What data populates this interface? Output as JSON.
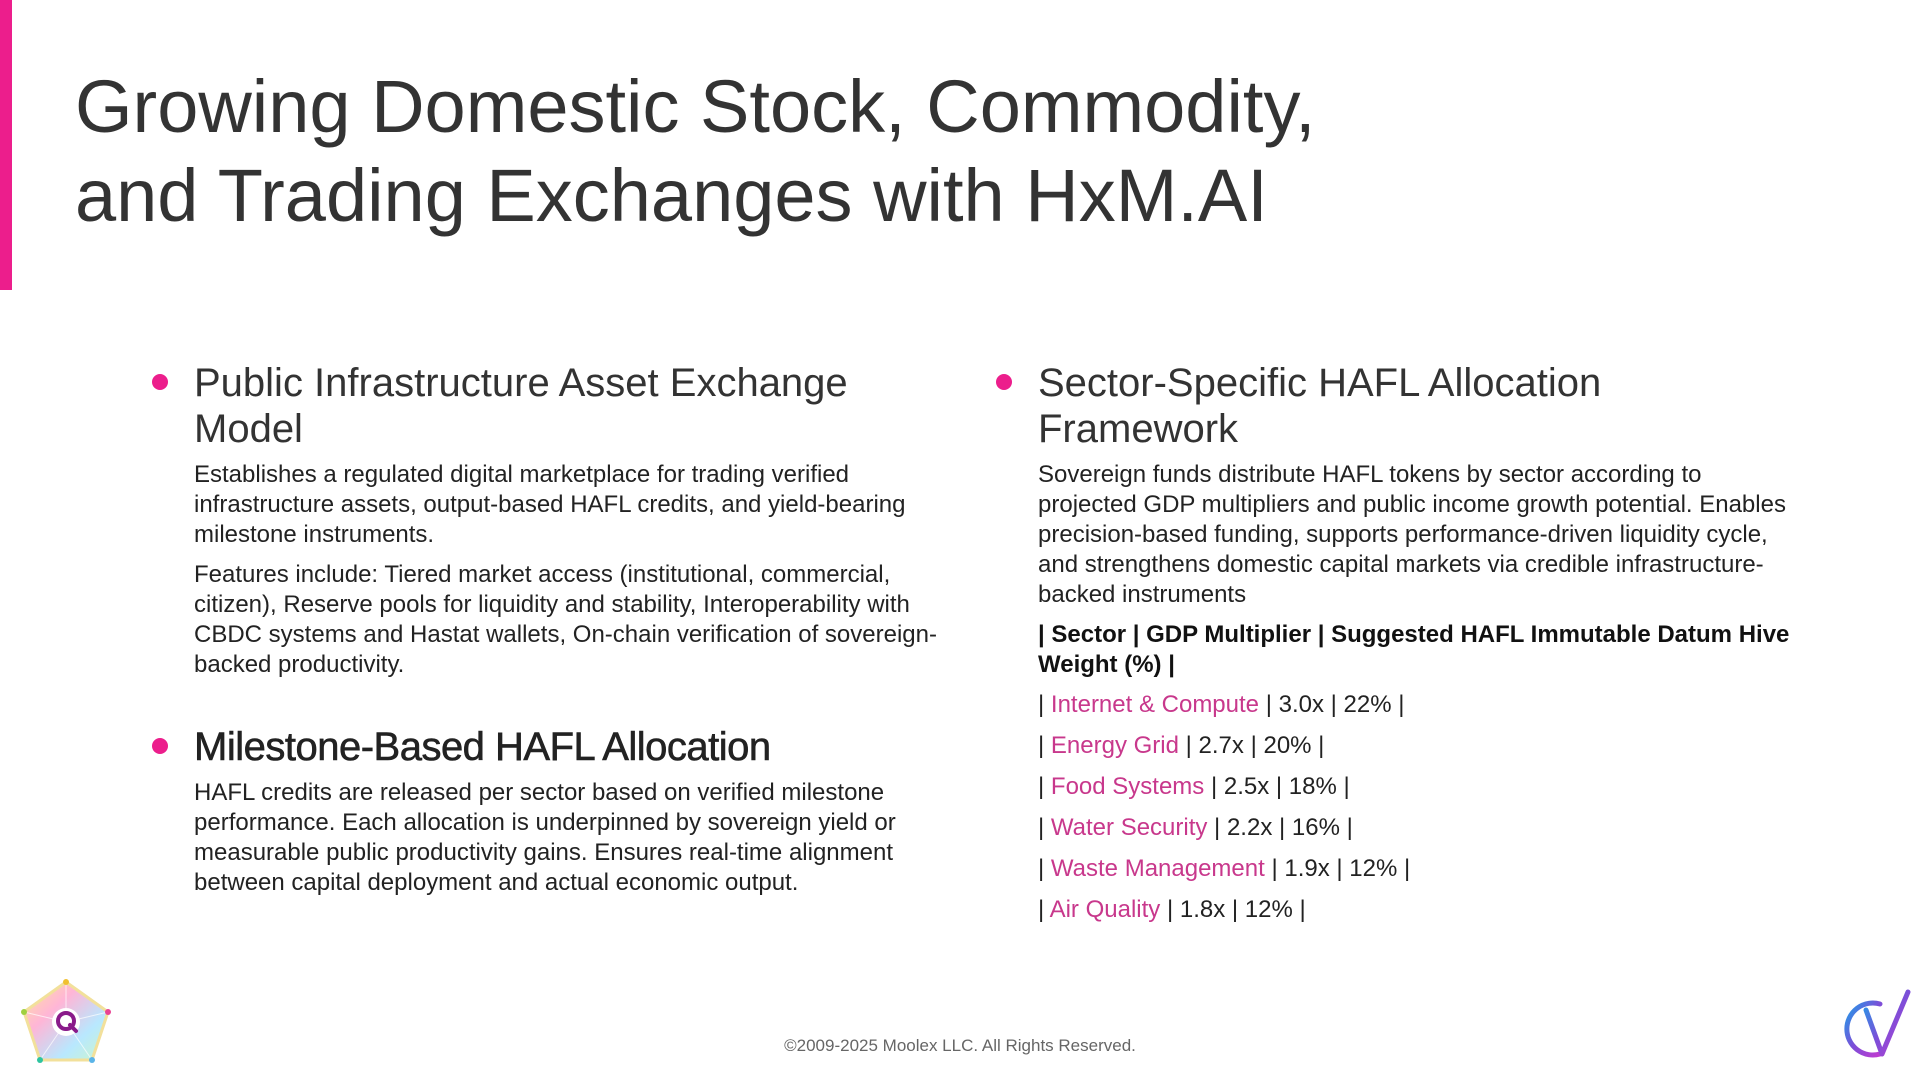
{
  "slide": {
    "title_line1": "Growing Domestic Stock, Commodity,",
    "title_line2": "and Trading Exchanges with HxM.AI",
    "accent_color": "#ec1e8c"
  },
  "left": {
    "block1": {
      "heading": "Public Infrastructure Asset Exchange Model",
      "para1": "Establishes a regulated digital marketplace for trading verified infrastructure assets, output-based HAFL credits, and yield-bearing milestone instruments.",
      "para2": "Features include: Tiered market access (institutional, commercial, citizen), Reserve pools for liquidity and stability, Interoperability with CBDC systems and Hastat wallets, On-chain verification of sovereign-backed productivity."
    },
    "block2": {
      "heading": "Milestone-Based HAFL Allocation",
      "para1": "HAFL credits are released per sector based on verified milestone performance. Each allocation is underpinned by sovereign yield or measurable public productivity gains. Ensures real-time alignment between capital deployment and actual economic output."
    }
  },
  "right": {
    "heading": "Sector-Specific HAFL Allocation Framework",
    "para1": "Sovereign funds distribute HAFL tokens by sector according to projected GDP multipliers and public income growth potential. Enables precision-based funding, supports performance-driven liquidity cycle, and strengthens domestic capital markets via credible infrastructure-backed instruments",
    "table_header": "| Sector | GDP Multiplier | Suggested HAFL Immutable Datum Hive Weight (%)  |",
    "rows": [
      {
        "sector": "Internet & Compute",
        "rest": " | 3.0x | 22% |"
      },
      {
        "sector": "Energy Grid",
        "rest": " | 2.7x | 20% |"
      },
      {
        "sector": "Food Systems",
        "rest": " | 2.5x | 18% |"
      },
      {
        "sector": "Water Security",
        "rest": " | 2.2x | 16% |"
      },
      {
        "sector": "Waste Management",
        "rest": " | 1.9x | 12% |"
      },
      {
        "sector": "Air Quality",
        "rest": " | 1.8x | 12% |"
      }
    ],
    "row_prefix": "| "
  },
  "footer": {
    "copyright": "©2009-2025 Moolex LLC. All Rights Reserved."
  },
  "logos": {
    "left": "pentagon-q-logo",
    "right": "cv-monogram-logo"
  }
}
